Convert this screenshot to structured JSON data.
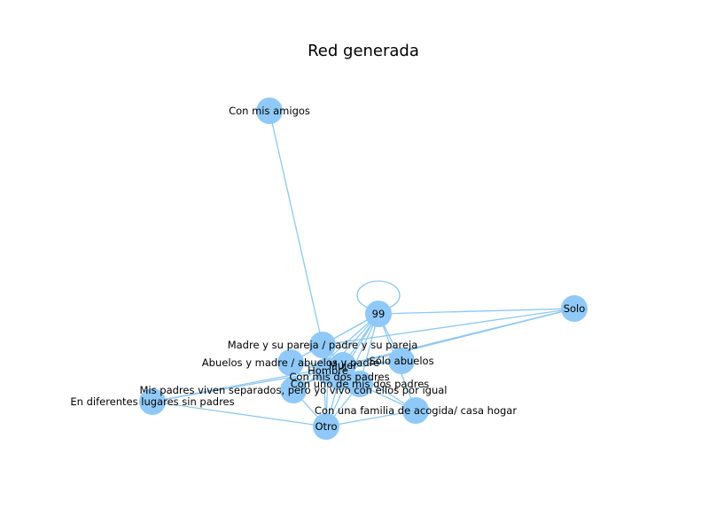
{
  "title": "Red generada",
  "colors": {
    "node": "#90c9f7",
    "edge": "#8ec8f2",
    "text": "#000000",
    "background": "#ffffff"
  },
  "nodes": [
    {
      "id": "amigos",
      "label": "Con mis amigos"
    },
    {
      "id": "n99",
      "label": "99"
    },
    {
      "id": "solo",
      "label": "Solo"
    },
    {
      "id": "madre_pareja",
      "label": "Madre y su pareja / padre y su pareja"
    },
    {
      "id": "abuelos_madre",
      "label": "Abuelos y madre / abuelos y padre"
    },
    {
      "id": "mujer",
      "label": "Mujer"
    },
    {
      "id": "hombre",
      "label": "Hombre"
    },
    {
      "id": "solo_abuelos",
      "label": "Sólo abuelos"
    },
    {
      "id": "dos_padres",
      "label": "Con mis dos padres"
    },
    {
      "id": "uno_padres",
      "label": "Con uno de mis dos padres"
    },
    {
      "id": "separados",
      "label": "Mis padres viven separados, pero yo vivo con ellos por igual"
    },
    {
      "id": "diferentes",
      "label": "En diferentes lugares sin padres"
    },
    {
      "id": "acogida",
      "label": "Con una familia de acogida/ casa hogar"
    },
    {
      "id": "otro",
      "label": "Otro"
    }
  ],
  "edges": [
    [
      "amigos",
      "madre_pareja"
    ],
    [
      "n99",
      "n99"
    ],
    [
      "n99",
      "solo"
    ],
    [
      "n99",
      "madre_pareja"
    ],
    [
      "n99",
      "abuelos_madre"
    ],
    [
      "n99",
      "mujer"
    ],
    [
      "n99",
      "hombre"
    ],
    [
      "n99",
      "solo_abuelos"
    ],
    [
      "n99",
      "uno_padres"
    ],
    [
      "n99",
      "dos_padres"
    ],
    [
      "n99",
      "separados"
    ],
    [
      "n99",
      "otro"
    ],
    [
      "n99",
      "acogida"
    ],
    [
      "solo",
      "madre_pareja"
    ],
    [
      "solo",
      "mujer"
    ],
    [
      "solo",
      "hombre"
    ],
    [
      "madre_pareja",
      "mujer"
    ],
    [
      "madre_pareja",
      "hombre"
    ],
    [
      "abuelos_madre",
      "mujer"
    ],
    [
      "abuelos_madre",
      "hombre"
    ],
    [
      "solo_abuelos",
      "mujer"
    ],
    [
      "solo_abuelos",
      "hombre"
    ],
    [
      "dos_padres",
      "mujer"
    ],
    [
      "dos_padres",
      "hombre"
    ],
    [
      "uno_padres",
      "mujer"
    ],
    [
      "uno_padres",
      "hombre"
    ],
    [
      "separados",
      "mujer"
    ],
    [
      "separados",
      "hombre"
    ],
    [
      "diferentes",
      "mujer"
    ],
    [
      "diferentes",
      "hombre"
    ],
    [
      "diferentes",
      "otro"
    ],
    [
      "acogida",
      "mujer"
    ],
    [
      "acogida",
      "hombre"
    ],
    [
      "acogida",
      "otro"
    ],
    [
      "otro",
      "mujer"
    ],
    [
      "otro",
      "hombre"
    ],
    [
      "otro",
      "separados"
    ],
    [
      "otro",
      "uno_padres"
    ],
    [
      "otro",
      "madre_pareja"
    ]
  ]
}
